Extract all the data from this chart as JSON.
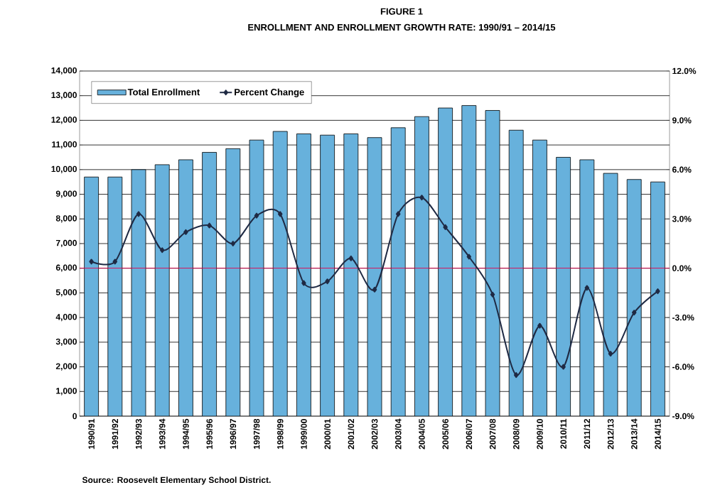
{
  "chart_data": {
    "type": "bar",
    "title": "FIGURE 1",
    "subtitle": "ENROLLMENT AND ENROLLMENT GROWTH RATE: 1990/91 – 2014/15",
    "categories": [
      "1990/91",
      "1991/92",
      "1992/93",
      "1993/94",
      "1994/95",
      "1995/96",
      "1996/97",
      "1997/98",
      "1998/99",
      "1999/00",
      "2000/01",
      "2001/02",
      "2002/03",
      "2003/04",
      "2004/05",
      "2005/06",
      "2006/07",
      "2007/08",
      "2008/09",
      "2009/10",
      "2010/11",
      "2011/12",
      "2012/13",
      "2013/14",
      "2014/15"
    ],
    "series": [
      {
        "name": "Total Enrollment",
        "color": "#67b1dc",
        "values": [
          9700,
          9700,
          10000,
          10200,
          10400,
          10700,
          10850,
          11200,
          11550,
          11450,
          11400,
          11450,
          11300,
          11700,
          12150,
          12500,
          12600,
          12400,
          11600,
          11200,
          10500,
          10400,
          9850,
          9600,
          9500
        ]
      },
      {
        "name": "Percent Change",
        "type": "line",
        "axis": "y2",
        "color": "#1f2a44",
        "values": [
          0.4,
          0.4,
          3.3,
          1.1,
          2.2,
          2.6,
          1.5,
          3.2,
          3.3,
          -0.9,
          -0.8,
          0.6,
          -1.3,
          3.3,
          4.3,
          2.5,
          0.7,
          -1.6,
          -6.5,
          -3.5,
          -6.0,
          -1.2,
          -5.2,
          -2.7,
          -1.4
        ]
      }
    ],
    "ylim": [
      0,
      14000
    ],
    "yticks": [
      {
        "value": 0,
        "label": "0"
      },
      {
        "value": 1000,
        "label": "1,000"
      },
      {
        "value": 2000,
        "label": "2,000"
      },
      {
        "value": 3000,
        "label": "3,000"
      },
      {
        "value": 4000,
        "label": "4,000"
      },
      {
        "value": 5000,
        "label": "5,000"
      },
      {
        "value": 6000,
        "label": "6,000"
      },
      {
        "value": 7000,
        "label": "7,000"
      },
      {
        "value": 8000,
        "label": "8,000"
      },
      {
        "value": 9000,
        "label": "9,000"
      },
      {
        "value": 10000,
        "label": "10,000"
      },
      {
        "value": 11000,
        "label": "11,000"
      },
      {
        "value": 12000,
        "label": "12,000"
      },
      {
        "value": 13000,
        "label": "13,000"
      },
      {
        "value": 14000,
        "label": "14,000"
      }
    ],
    "y2lim": [
      -9,
      12
    ],
    "y2ticks": [
      {
        "value": -9,
        "label": "-9.0%"
      },
      {
        "value": -6,
        "label": "-6.0%"
      },
      {
        "value": -3,
        "label": "-3.0%"
      },
      {
        "value": 0,
        "label": "0.0%"
      },
      {
        "value": 3,
        "label": "3.0%"
      },
      {
        "value": 6,
        "label": "6.0%"
      },
      {
        "value": 9,
        "label": "9.0%"
      },
      {
        "value": 12,
        "label": "12.0%"
      }
    ],
    "ref_lines": [
      {
        "axis": "y2",
        "value": 0,
        "color": "#e0004d"
      }
    ],
    "grid": "y",
    "legend": "top left",
    "marker": "diamond",
    "annotations": [
      "Source: Roosevelt Elementary School District."
    ]
  }
}
